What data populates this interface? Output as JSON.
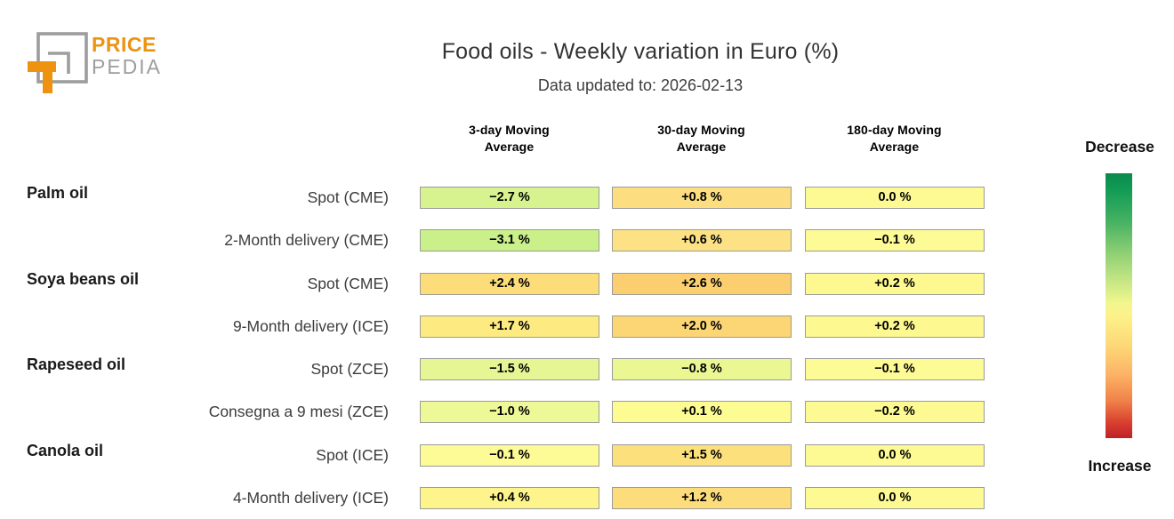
{
  "header": {
    "title": "Food oils - Weekly variation in Euro (%)",
    "subtitle": "Data updated to: 2026-02-13",
    "logo": {
      "line1": "PRICE",
      "line2": "PEDIA",
      "orange": "#ED9211",
      "gray": "#9d9d9d"
    }
  },
  "table": {
    "columns": [
      {
        "line1": "3-day Moving",
        "line2": "Average"
      },
      {
        "line1": "30-day Moving",
        "line2": "Average"
      },
      {
        "line1": "180-day Moving",
        "line2": "Average"
      }
    ],
    "rows": [
      {
        "group": "Palm oil",
        "label": "Spot (CME)",
        "cells": [
          {
            "text": "−2.7 %",
            "color": "#d6f38f"
          },
          {
            "text": "+0.8 %",
            "color": "#fcde80"
          },
          {
            "text": "0.0 %",
            "color": "#fdfa94"
          }
        ]
      },
      {
        "group": "",
        "label": "2-Month delivery (CME)",
        "cells": [
          {
            "text": "−3.1 %",
            "color": "#caf089"
          },
          {
            "text": "+0.6 %",
            "color": "#fce284"
          },
          {
            "text": "−0.1 %",
            "color": "#fdfb95"
          }
        ]
      },
      {
        "group": "Soya beans oil",
        "label": "Spot (CME)",
        "cells": [
          {
            "text": "+2.4 %",
            "color": "#fcdd7a"
          },
          {
            "text": "+2.6 %",
            "color": "#fbcf70"
          },
          {
            "text": "+0.2 %",
            "color": "#fdf890"
          }
        ]
      },
      {
        "group": "",
        "label": "9-Month delivery (ICE)",
        "cells": [
          {
            "text": "+1.7 %",
            "color": "#fdeb82"
          },
          {
            "text": "+2.0 %",
            "color": "#fcd674"
          },
          {
            "text": "+0.2 %",
            "color": "#fdf890"
          }
        ]
      },
      {
        "group": "Rapeseed oil",
        "label": "Spot (ZCE)",
        "cells": [
          {
            "text": "−1.5 %",
            "color": "#e6f695"
          },
          {
            "text": "−0.8 %",
            "color": "#eaf793"
          },
          {
            "text": "−0.1 %",
            "color": "#fdfb95"
          }
        ]
      },
      {
        "group": "",
        "label": "Consegna a 9 mesi (ZCE)",
        "cells": [
          {
            "text": "−1.0 %",
            "color": "#edf897"
          },
          {
            "text": "+0.1 %",
            "color": "#fdfc92"
          },
          {
            "text": "−0.2 %",
            "color": "#fdfa93"
          }
        ]
      },
      {
        "group": "Canola oil",
        "label": "Spot (ICE)",
        "cells": [
          {
            "text": "−0.1 %",
            "color": "#fdfb95"
          },
          {
            "text": "+1.5 %",
            "color": "#fce07b"
          },
          {
            "text": "0.0 %",
            "color": "#fdfa94"
          }
        ]
      },
      {
        "group": "",
        "label": "4-Month delivery (ICE)",
        "cells": [
          {
            "text": "+0.4 %",
            "color": "#fdf48c"
          },
          {
            "text": "+1.2 %",
            "color": "#fcdc7b"
          },
          {
            "text": "0.0 %",
            "color": "#fdfa94"
          }
        ]
      }
    ]
  },
  "legend": {
    "top_label": "Decrease",
    "bottom_label": "Increase",
    "gradient": [
      "#0a8a4c 0%",
      "#119b55 6%",
      "#45b163 18%",
      "#8ecf74 30%",
      "#c7e785 41%",
      "#f2f68e 49%",
      "#fdf18a 54%",
      "#fdd877 65%",
      "#fcb365 76%",
      "#f08149 86%",
      "#d8402f 94%",
      "#c12127 100%"
    ]
  },
  "chart_data": {
    "type": "heatmap",
    "title": "Food oils - Weekly variation in Euro (%)",
    "subtitle": "Data updated to: 2026-02-13",
    "columns": [
      "3-day Moving Average",
      "30-day Moving Average",
      "180-day Moving Average"
    ],
    "rows": [
      {
        "group": "Palm oil",
        "series": "Spot (CME)",
        "values_pct": [
          -2.7,
          0.8,
          0.0
        ]
      },
      {
        "group": "Palm oil",
        "series": "2-Month delivery (CME)",
        "values_pct": [
          -3.1,
          0.6,
          -0.1
        ]
      },
      {
        "group": "Soya beans oil",
        "series": "Spot (CME)",
        "values_pct": [
          2.4,
          2.6,
          0.2
        ]
      },
      {
        "group": "Soya beans oil",
        "series": "9-Month delivery (ICE)",
        "values_pct": [
          1.7,
          2.0,
          0.2
        ]
      },
      {
        "group": "Rapeseed oil",
        "series": "Spot (ZCE)",
        "values_pct": [
          -1.5,
          -0.8,
          -0.1
        ]
      },
      {
        "group": "Rapeseed oil",
        "series": "Consegna a 9 mesi (ZCE)",
        "values_pct": [
          -1.0,
          0.1,
          -0.2
        ]
      },
      {
        "group": "Canola oil",
        "series": "Spot (ICE)",
        "values_pct": [
          -0.1,
          1.5,
          0.0
        ]
      },
      {
        "group": "Canola oil",
        "series": "4-Month delivery (ICE)",
        "values_pct": [
          0.4,
          1.2,
          0.0
        ]
      }
    ],
    "colorscale": {
      "decrease_color": "#0a8a4c",
      "neutral_color": "#fdfa94",
      "increase_color": "#c12127",
      "legend_top": "Decrease",
      "legend_bottom": "Increase"
    },
    "legend_position": "right"
  }
}
